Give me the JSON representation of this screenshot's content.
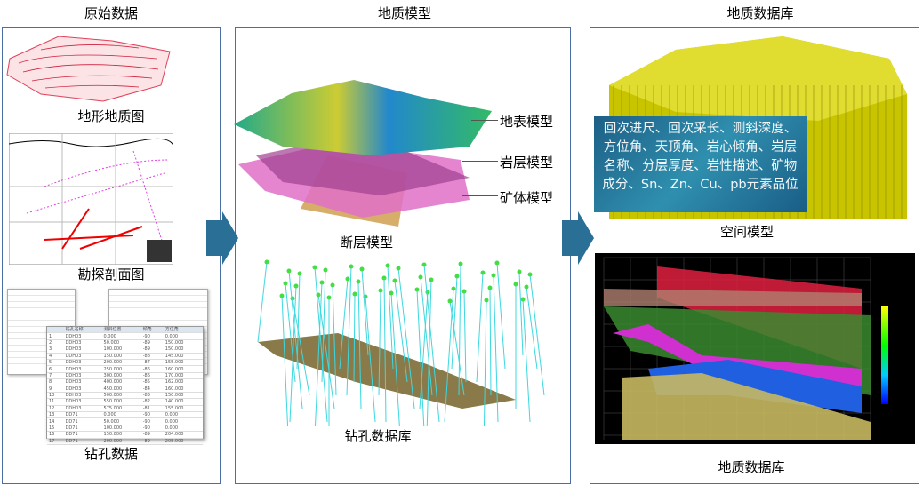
{
  "columns": [
    {
      "title": "原始数据",
      "items": [
        "地形地质图",
        "勘探剖面图",
        "钻孔数据"
      ]
    },
    {
      "title": "地质模型",
      "items": [
        "地表模型",
        "岩层模型",
        "矿体模型",
        "断层模型",
        "钻孔数据库"
      ]
    },
    {
      "title": "地质数据库",
      "items": [
        "空间模型",
        "地质数据库"
      ]
    }
  ],
  "infobox": "回次进尺、回次采长、测斜深度、方位角、天顶角、岩心倾角、岩层名称、分层厚度、岩性描述、矿物成分、Sn、Zn、Cu、pb元素品位",
  "drill_table": {
    "headers": [
      "",
      "钻孔名称",
      "测斜位置",
      "倾角",
      "方位角"
    ],
    "rows": [
      [
        "1",
        "DDH03",
        "0.000",
        "-90",
        "0.000"
      ],
      [
        "2",
        "DDH03",
        "50.000",
        "-89",
        "150.000"
      ],
      [
        "3",
        "DDH03",
        "100.000",
        "-89",
        "150.000"
      ],
      [
        "4",
        "DDH03",
        "150.000",
        "-88",
        "145.000"
      ],
      [
        "5",
        "DDH03",
        "200.000",
        "-87",
        "155.000"
      ],
      [
        "6",
        "DDH03",
        "250.000",
        "-86",
        "160.000"
      ],
      [
        "7",
        "DDH03",
        "300.000",
        "-86",
        "170.000"
      ],
      [
        "8",
        "DDH03",
        "400.000",
        "-85",
        "162.000"
      ],
      [
        "9",
        "DDH03",
        "450.000",
        "-84",
        "160.000"
      ],
      [
        "10",
        "DDH03",
        "500.000",
        "-83",
        "150.000"
      ],
      [
        "11",
        "DDH03",
        "550.000",
        "-82",
        "140.000"
      ],
      [
        "12",
        "DDH03",
        "575.000",
        "-81",
        "155.000"
      ],
      [
        "13",
        "DD71",
        "0.000",
        "-90",
        "0.000"
      ],
      [
        "14",
        "DD71",
        "50.000",
        "-90",
        "0.000"
      ],
      [
        "15",
        "DD71",
        "100.000",
        "-90",
        "0.000"
      ],
      [
        "16",
        "DD71",
        "150.000",
        "-89",
        "204.000"
      ],
      [
        "17",
        "DD71",
        "200.000",
        "-89",
        "205.000"
      ]
    ]
  },
  "colors": {
    "panel_border": "#4a6fa5",
    "arrow": "#2a6f96",
    "infobox": "#1d5f86",
    "block_model": "#c8c400"
  }
}
